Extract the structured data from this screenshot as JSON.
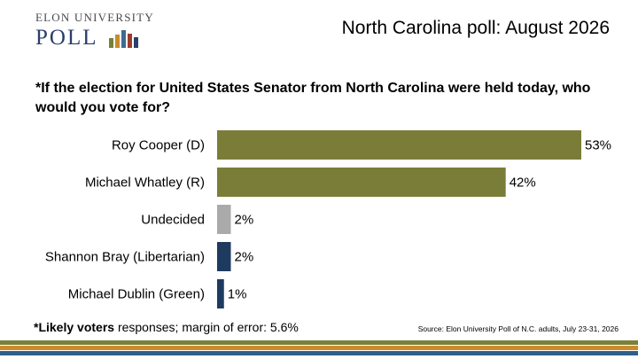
{
  "header": {
    "logo_top": "ELON UNIVERSITY",
    "logo_bottom": "POLL",
    "logo_bar_colors": [
      "#7a8038",
      "#c98b2e",
      "#3f6a92",
      "#9c3c2a",
      "#2a3f6a"
    ],
    "logo_bar_levels": [
      0.55,
      0.75,
      1.0,
      0.8,
      0.6
    ],
    "title": "North Carolina poll: August 2026"
  },
  "question": "*If the election for United States Senator from North Carolina were held today, who would you vote for?",
  "chart_data": {
    "type": "bar",
    "orientation": "horizontal",
    "categories": [
      "Roy Cooper (D)",
      "Michael Whatley (R)",
      "Undecided",
      "Shannon Bray (Libertarian)",
      "Michael Dublin (Green)"
    ],
    "values": [
      53,
      42,
      2,
      2,
      1
    ],
    "value_labels": [
      "53%",
      "42%",
      "2%",
      "2%",
      "1%"
    ],
    "colors": [
      "#7a7d37",
      "#7a7d37",
      "#aaaaaa",
      "#1f3a5f",
      "#1f3a5f"
    ],
    "xlim": [
      0,
      53
    ]
  },
  "footnote": {
    "bold": "*Likely voters",
    "rest": " responses; margin of error: 5.6%"
  },
  "source": "Source: Elon University Poll of N.C. adults, July 23-31, 2026",
  "stripe_colors": [
    "#7a8038",
    "#c98b2e",
    "#2f5f8a"
  ]
}
